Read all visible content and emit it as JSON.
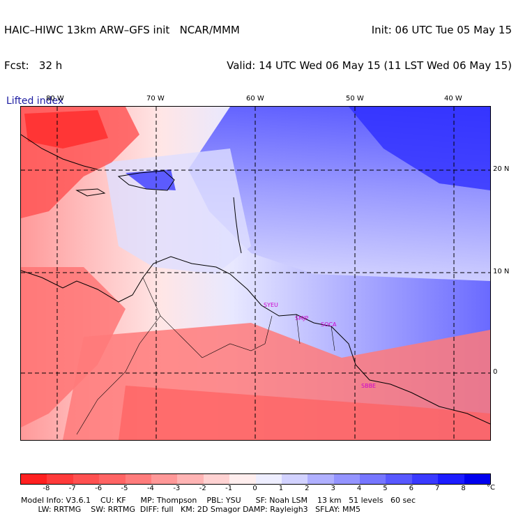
{
  "header": {
    "model_title": "HAIC–HIWC 13km ARW–GFS init   NCAR/MMM",
    "forecast": "Fcst:   32 h",
    "field": "Lifted index",
    "init": "Init: 06 UTC Tue 05 May 15",
    "valid": "Valid: 14 UTC Wed 06 May 15 (11 LST Wed 06 May 15)"
  },
  "map": {
    "lon_labels": [
      "80 W",
      "70 W",
      "60 W",
      "50 W",
      "40 W"
    ],
    "lat_labels": [
      "20 N",
      "10 N",
      "0"
    ],
    "stations": [
      "SYEU",
      "SMJP",
      "SOCA",
      "SBBE"
    ]
  },
  "colorbar": {
    "unit": "°C",
    "ticks": [
      "-8",
      "-7",
      "-6",
      "-5",
      "-4",
      "-3",
      "-2",
      "-1",
      "0",
      "1",
      "2",
      "3",
      "4",
      "5",
      "6",
      "7",
      "8"
    ],
    "colors": [
      "#ff2020",
      "#ff3a3a",
      "#ff5050",
      "#ff6464",
      "#ff7c7c",
      "#ff9898",
      "#ffb4b4",
      "#ffd2d2",
      "#ffeeee",
      "#eeeeff",
      "#d2d2ff",
      "#b0b0ff",
      "#9494ff",
      "#7676ff",
      "#5858ff",
      "#3a3aff",
      "#1c1cff",
      "#0000ee"
    ]
  },
  "footer": {
    "line1": "Model Info: V3.6.1    CU: KF      MP: Thompson    PBL: YSU      SF: Noah LSM    13 km   51 levels   60 sec",
    "line2": "       LW: RRTMG    SW: RRTMG  DIFF: full   KM: 2D Smagor DAMP: Rayleigh3   SFLAY: MM5"
  }
}
